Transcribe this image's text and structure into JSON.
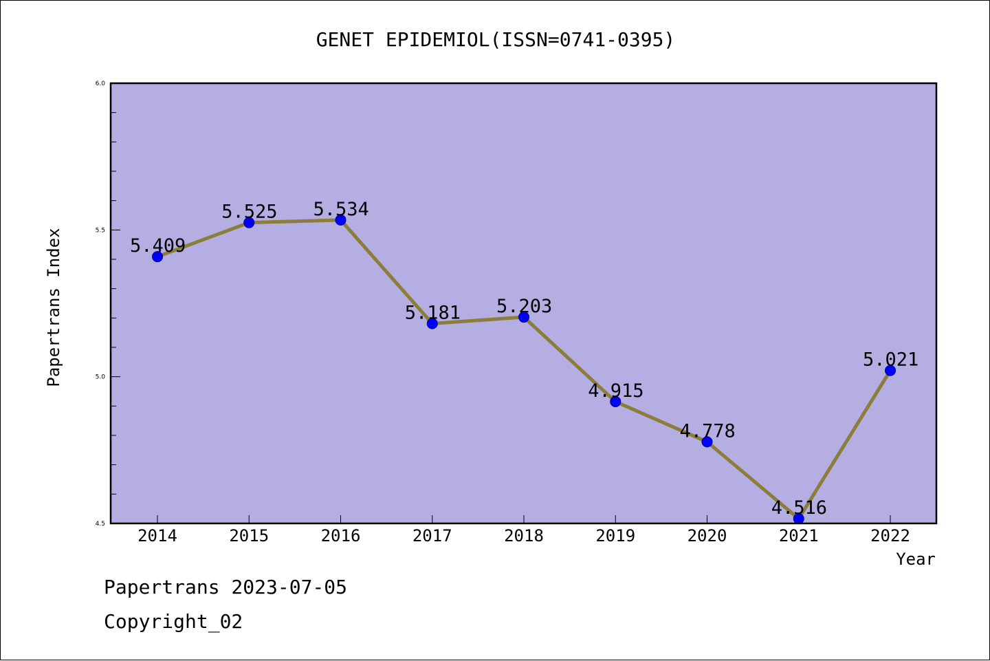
{
  "chart_data": {
    "type": "line",
    "title": "GENET EPIDEMIOL(ISSN=0741-0395)",
    "xlabel": "Year",
    "ylabel": "Papertrans Index",
    "categories": [
      "2014",
      "2015",
      "2016",
      "2017",
      "2018",
      "2019",
      "2020",
      "2021",
      "2022"
    ],
    "values": [
      5.409,
      5.525,
      5.534,
      5.181,
      5.203,
      4.915,
      4.778,
      4.516,
      5.021
    ],
    "data_labels": [
      "5.409",
      "5.525",
      "5.534",
      "5.181",
      "5.203",
      "4.915",
      "4.778",
      "4.516",
      "5.021"
    ],
    "ylim": [
      4.5,
      6.0
    ],
    "yticks": [
      4.5,
      5.0,
      5.5,
      6.0
    ],
    "ytick_labels": [
      "4.5",
      "5.0",
      "5.5",
      "6.0"
    ],
    "yminor_step": 0.1,
    "grid": false,
    "legend": "none",
    "colors": {
      "plot_background": "#b5aee2",
      "line": "#8b7d3a",
      "marker": "#0000ff",
      "axis": "#000000"
    }
  },
  "footer": {
    "source": "Papertrans 2023-07-05",
    "copyright": "Copyright_02"
  }
}
